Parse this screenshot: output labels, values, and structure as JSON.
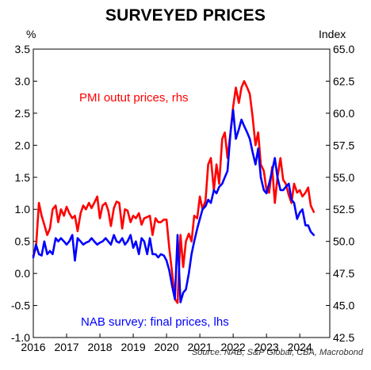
{
  "title": "SURVEYED PRICES",
  "left_axis_unit": "%",
  "right_axis_unit": "Index",
  "source": "Source: NAB, S&P Global, CBA, Macrobond",
  "colors": {
    "pmi": "#ff0000",
    "nab": "#0000ff",
    "axis": "#000000",
    "background": "#ffffff"
  },
  "annotations": {
    "pmi": "PMI outut prices, rhs",
    "nab": "NAB survey: final prices, lhs"
  },
  "chart_data": {
    "type": "line",
    "title": "SURVEYED PRICES",
    "xlabel": "",
    "x_ticks": [
      "2016",
      "2017",
      "2018",
      "2019",
      "2020",
      "2021",
      "2022",
      "2023",
      "2024"
    ],
    "x_range": [
      2016.0,
      2024.9
    ],
    "y_left": {
      "unit": "%",
      "ylim": [
        -1.0,
        3.5
      ],
      "ticks": [
        "-1.0",
        "-0.5",
        "0.0",
        "0.5",
        "1.0",
        "1.5",
        "2.0",
        "2.5",
        "3.0",
        "3.5"
      ]
    },
    "y_right": {
      "unit": "Index",
      "ylim": [
        42.5,
        65.0
      ],
      "ticks": [
        "42.5",
        "45.0",
        "47.5",
        "50.0",
        "52.5",
        "55.0",
        "57.5",
        "60.0",
        "62.5",
        "65.0"
      ]
    },
    "grid": false,
    "series": [
      {
        "name": "PMI outut prices, rhs",
        "axis": "right",
        "color": "#ff0000",
        "x": [
          2016.0,
          2016.08,
          2016.17,
          2016.25,
          2016.33,
          2016.42,
          2016.5,
          2016.58,
          2016.67,
          2016.75,
          2016.83,
          2016.92,
          2017.0,
          2017.08,
          2017.17,
          2017.25,
          2017.33,
          2017.42,
          2017.5,
          2017.58,
          2017.67,
          2017.75,
          2017.83,
          2017.92,
          2018.0,
          2018.08,
          2018.17,
          2018.25,
          2018.33,
          2018.42,
          2018.5,
          2018.58,
          2018.67,
          2018.75,
          2018.83,
          2018.92,
          2019.0,
          2019.08,
          2019.17,
          2019.25,
          2019.33,
          2019.42,
          2019.5,
          2019.58,
          2019.67,
          2019.75,
          2019.83,
          2019.92,
          2020.0,
          2020.08,
          2020.17,
          2020.25,
          2020.33,
          2020.42,
          2020.5,
          2020.58,
          2020.67,
          2020.75,
          2020.83,
          2020.92,
          2021.0,
          2021.08,
          2021.17,
          2021.25,
          2021.33,
          2021.42,
          2021.5,
          2021.58,
          2021.67,
          2021.75,
          2021.83,
          2021.92,
          2022.0,
          2022.08,
          2022.17,
          2022.25,
          2022.33,
          2022.42,
          2022.5,
          2022.58,
          2022.67,
          2022.75,
          2022.83,
          2022.92,
          2023.0,
          2023.08,
          2023.17,
          2023.25,
          2023.33,
          2023.42,
          2023.5,
          2023.58,
          2023.67,
          2023.75,
          2023.83,
          2023.92,
          2024.0,
          2024.08,
          2024.17,
          2024.25,
          2024.33,
          2024.42
        ],
        "y": [
          48.9,
          49.5,
          53.0,
          52.0,
          51.3,
          50.5,
          51.0,
          52.5,
          52.8,
          51.5,
          52.5,
          52.0,
          52.7,
          52.2,
          51.8,
          52.0,
          50.8,
          52.2,
          52.8,
          52.5,
          53.0,
          52.6,
          53.0,
          53.5,
          51.8,
          52.8,
          53.0,
          52.4,
          51.2,
          52.6,
          53.1,
          53.0,
          51.0,
          52.5,
          52.4,
          51.5,
          52.0,
          51.8,
          52.2,
          51.3,
          51.8,
          51.9,
          52.0,
          50.5,
          51.8,
          51.5,
          51.5,
          51.7,
          51.7,
          49.5,
          47.5,
          45.5,
          45.2,
          50.5,
          48.0,
          50.0,
          50.6,
          50.0,
          52.0,
          51.8,
          53.5,
          52.5,
          53.2,
          56.0,
          56.5,
          54.0,
          56.0,
          54.5,
          58.0,
          58.5,
          56.5,
          58.5,
          60.5,
          62.0,
          60.8,
          62.0,
          62.5,
          62.0,
          61.5,
          59.8,
          57.5,
          58.5,
          56.0,
          55.5,
          54.0,
          53.8,
          55.8,
          53.0,
          55.0,
          56.5,
          54.8,
          54.5,
          53.6,
          53.0,
          54.5,
          53.8,
          54.0,
          53.5,
          53.8,
          54.2,
          52.8,
          52.3
        ]
      },
      {
        "name": "NAB survey: final prices, lhs",
        "axis": "left",
        "color": "#0000ff",
        "x": [
          2016.0,
          2016.08,
          2016.17,
          2016.25,
          2016.33,
          2016.42,
          2016.5,
          2016.58,
          2016.67,
          2016.75,
          2016.83,
          2016.92,
          2017.0,
          2017.08,
          2017.17,
          2017.25,
          2017.33,
          2017.42,
          2017.5,
          2017.58,
          2017.67,
          2017.75,
          2017.83,
          2017.92,
          2018.0,
          2018.08,
          2018.17,
          2018.25,
          2018.33,
          2018.42,
          2018.5,
          2018.58,
          2018.67,
          2018.75,
          2018.83,
          2018.92,
          2019.0,
          2019.08,
          2019.17,
          2019.25,
          2019.33,
          2019.42,
          2019.5,
          2019.58,
          2019.67,
          2019.75,
          2019.83,
          2019.92,
          2020.0,
          2020.08,
          2020.17,
          2020.25,
          2020.33,
          2020.42,
          2020.5,
          2020.58,
          2020.67,
          2020.75,
          2020.83,
          2020.92,
          2021.0,
          2021.08,
          2021.17,
          2021.25,
          2021.33,
          2021.42,
          2021.5,
          2021.58,
          2021.67,
          2021.75,
          2021.83,
          2021.92,
          2022.0,
          2022.08,
          2022.17,
          2022.25,
          2022.33,
          2022.42,
          2022.5,
          2022.58,
          2022.67,
          2022.75,
          2022.83,
          2022.92,
          2023.0,
          2023.08,
          2023.17,
          2023.25,
          2023.33,
          2023.42,
          2023.5,
          2023.58,
          2023.67,
          2023.75,
          2023.83,
          2023.92,
          2024.0,
          2024.08,
          2024.17,
          2024.25,
          2024.33,
          2024.42
        ],
        "y": [
          0.25,
          0.45,
          0.3,
          0.28,
          0.5,
          0.3,
          0.35,
          0.3,
          0.55,
          0.5,
          0.55,
          0.5,
          0.45,
          0.5,
          0.6,
          0.2,
          0.55,
          0.5,
          0.45,
          0.48,
          0.5,
          0.55,
          0.5,
          0.45,
          0.48,
          0.5,
          0.55,
          0.5,
          0.45,
          0.6,
          0.5,
          0.48,
          0.55,
          0.45,
          0.5,
          0.6,
          0.4,
          0.5,
          0.3,
          0.55,
          0.5,
          0.3,
          0.55,
          0.3,
          0.3,
          0.25,
          0.3,
          0.28,
          0.2,
          0.05,
          -0.2,
          -0.4,
          0.6,
          -0.45,
          -0.3,
          -0.25,
          0.0,
          0.3,
          0.5,
          0.7,
          0.85,
          1.0,
          1.05,
          1.15,
          1.1,
          1.3,
          1.25,
          1.35,
          1.4,
          1.5,
          1.6,
          2.2,
          2.55,
          2.1,
          2.25,
          2.4,
          2.3,
          2.2,
          2.1,
          1.9,
          1.7,
          1.95,
          1.5,
          1.3,
          1.25,
          1.4,
          1.6,
          1.8,
          1.5,
          1.3,
          1.3,
          1.35,
          1.4,
          1.15,
          1.1,
          0.85,
          0.95,
          1.0,
          0.75,
          0.75,
          0.65,
          0.6
        ]
      }
    ]
  }
}
